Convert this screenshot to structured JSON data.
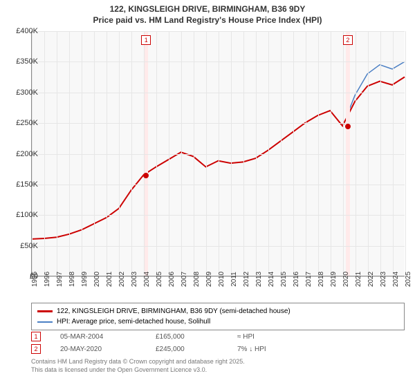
{
  "title": {
    "line1": "122, KINGSLEIGH DRIVE, BIRMINGHAM, B36 9DY",
    "line2": "Price paid vs. HM Land Registry's House Price Index (HPI)"
  },
  "chart": {
    "type": "line",
    "y_axis": {
      "min": 0,
      "max": 400000,
      "step": 50000,
      "tick_format": "£{v/1000}K",
      "zero_label": "£0"
    },
    "x_axis": {
      "min": 1995,
      "max": 2025,
      "step": 1
    },
    "background_color": "#f8f8f8",
    "grid_color": "#e6e6e6",
    "marker_band_color": "#ffeaea",
    "sale_markers": [
      {
        "id": "1",
        "year": 2004.18,
        "price": 165000,
        "badge_border": "#cc0000",
        "badge_text": "#cc0000",
        "dot_color": "#cc0000"
      },
      {
        "id": "2",
        "year": 2020.38,
        "price": 245000,
        "badge_border": "#cc0000",
        "badge_text": "#cc0000",
        "dot_color": "#cc0000"
      }
    ],
    "series": [
      {
        "name": "price_paid",
        "color": "#cc0000",
        "width": 2,
        "points": [
          [
            1995,
            60000
          ],
          [
            1996,
            61000
          ],
          [
            1997,
            63000
          ],
          [
            1998,
            68000
          ],
          [
            1999,
            75000
          ],
          [
            2000,
            85000
          ],
          [
            2001,
            95000
          ],
          [
            2002,
            110000
          ],
          [
            2003,
            140000
          ],
          [
            2004,
            165000
          ],
          [
            2005,
            178000
          ],
          [
            2006,
            190000
          ],
          [
            2007,
            202000
          ],
          [
            2008,
            195000
          ],
          [
            2009,
            178000
          ],
          [
            2010,
            188000
          ],
          [
            2011,
            184000
          ],
          [
            2012,
            186000
          ],
          [
            2013,
            192000
          ],
          [
            2014,
            205000
          ],
          [
            2015,
            220000
          ],
          [
            2016,
            235000
          ],
          [
            2017,
            250000
          ],
          [
            2018,
            262000
          ],
          [
            2019,
            270000
          ],
          [
            2020,
            245000
          ],
          [
            2021,
            285000
          ],
          [
            2022,
            310000
          ],
          [
            2023,
            318000
          ],
          [
            2024,
            312000
          ],
          [
            2025,
            325000
          ]
        ]
      },
      {
        "name": "hpi",
        "color": "#4a7fc4",
        "width": 1.5,
        "points": [
          [
            2020.38,
            263000
          ],
          [
            2021,
            295000
          ],
          [
            2022,
            330000
          ],
          [
            2023,
            345000
          ],
          [
            2024,
            338000
          ],
          [
            2025,
            350000
          ]
        ]
      }
    ]
  },
  "legend": {
    "items": [
      {
        "label": "122, KINGSLEIGH DRIVE, BIRMINGHAM, B36 9DY (semi-detached house)",
        "color": "#cc0000"
      },
      {
        "label": "HPI: Average price, semi-detached house, Solihull",
        "color": "#4a7fc4"
      }
    ]
  },
  "sales": [
    {
      "id": "1",
      "date": "05-MAR-2004",
      "price": "£165,000",
      "hpi": "≈ HPI",
      "badge_color": "#cc0000"
    },
    {
      "id": "2",
      "date": "20-MAY-2020",
      "price": "£245,000",
      "hpi": "7% ↓ HPI",
      "badge_color": "#cc0000"
    }
  ],
  "footer": {
    "line1": "Contains HM Land Registry data © Crown copyright and database right 2025.",
    "line2": "This data is licensed under the Open Government Licence v3.0."
  }
}
